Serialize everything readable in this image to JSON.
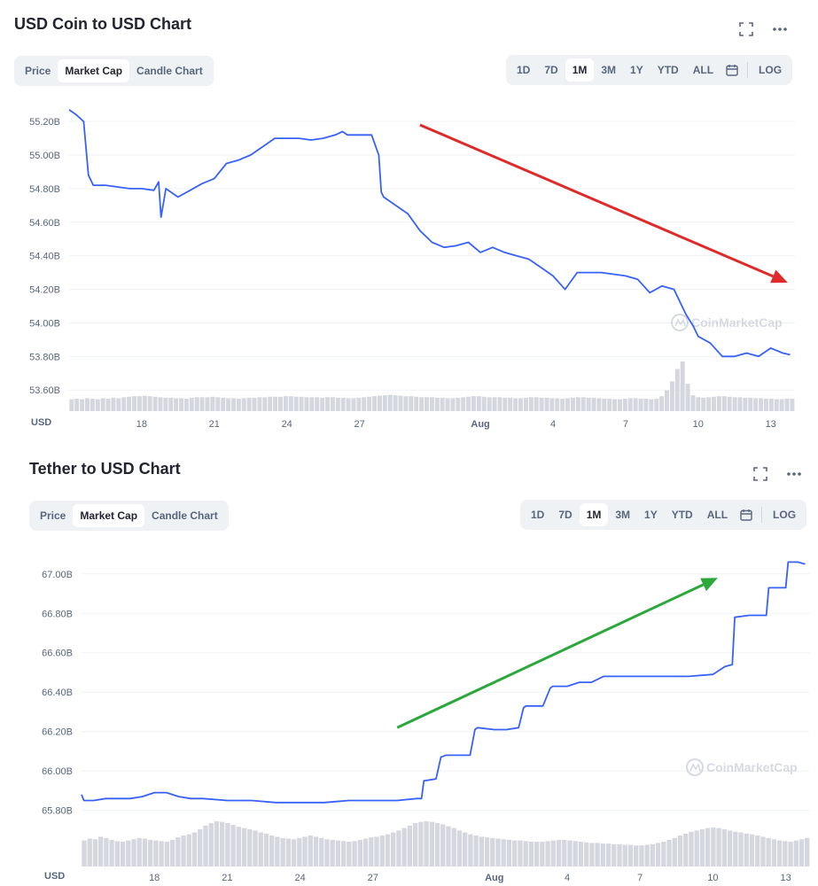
{
  "charts": [
    {
      "title": "USD Coin to USD Chart",
      "tabs": [
        "Price",
        "Market Cap",
        "Candle Chart"
      ],
      "active_tab": "Market Cap",
      "ranges": [
        "1D",
        "7D",
        "1M",
        "3M",
        "1Y",
        "YTD",
        "ALL"
      ],
      "active_range": "1M",
      "log_label": "LOG",
      "currency_label": "USD",
      "watermark": "CoinMarketCap"
    },
    {
      "title": "Tether to USD Chart",
      "tabs": [
        "Price",
        "Market Cap",
        "Candle Chart"
      ],
      "active_tab": "Market Cap",
      "ranges": [
        "1D",
        "7D",
        "1M",
        "3M",
        "1Y",
        "YTD",
        "ALL"
      ],
      "active_range": "1M",
      "log_label": "LOG",
      "currency_label": "USD",
      "watermark": "CoinMarketCap"
    }
  ],
  "chart_data": [
    {
      "type": "line",
      "title": "USD Coin to USD Chart",
      "ylabel": "",
      "xlabel": "",
      "ylim": [
        53.58,
        55.28
      ],
      "y_ticks": [
        "53.60B",
        "53.80B",
        "54.00B",
        "54.20B",
        "54.40B",
        "54.60B",
        "54.80B",
        "55.00B",
        "55.20B"
      ],
      "y_tick_values": [
        53.6,
        53.8,
        54.0,
        54.2,
        54.4,
        54.6,
        54.8,
        55.0,
        55.2
      ],
      "x_ticks": [
        "18",
        "21",
        "24",
        "27",
        "Aug",
        "4",
        "7",
        "10",
        "13"
      ],
      "x_tick_values": [
        18,
        21,
        24,
        27,
        32,
        35,
        38,
        41,
        44
      ],
      "xlim": [
        15,
        45
      ],
      "series": [
        {
          "color": "#3861fb",
          "x": [
            15,
            15.3,
            15.6,
            15.8,
            16,
            16.5,
            17,
            17.5,
            18,
            18.5,
            18.7,
            18.8,
            19,
            19.5,
            20,
            20.5,
            21,
            21.5,
            22,
            22.5,
            23,
            23.5,
            24,
            24.5,
            25,
            25.5,
            26,
            26.3,
            26.5,
            27,
            27.5,
            27.8,
            27.9,
            28,
            28.5,
            29,
            29.5,
            30,
            30.5,
            31,
            31.5,
            32,
            32.5,
            33,
            33.5,
            34,
            34.5,
            35,
            35.5,
            36,
            36.5,
            37,
            37.5,
            38,
            38.5,
            39,
            39.5,
            40,
            40.5,
            40.8,
            41,
            41.5,
            42,
            42.5,
            43,
            43.5,
            44,
            44.5,
            44.8
          ],
          "y": [
            55.27,
            55.24,
            55.2,
            54.88,
            54.82,
            54.82,
            54.81,
            54.8,
            54.8,
            54.79,
            54.84,
            54.63,
            54.8,
            54.75,
            54.79,
            54.83,
            54.86,
            54.95,
            54.97,
            55.0,
            55.05,
            55.1,
            55.1,
            55.1,
            55.09,
            55.1,
            55.12,
            55.14,
            55.12,
            55.12,
            55.12,
            55.0,
            54.78,
            54.75,
            54.7,
            54.65,
            54.55,
            54.48,
            54.45,
            54.46,
            54.48,
            54.42,
            54.45,
            54.42,
            54.4,
            54.38,
            54.33,
            54.28,
            54.2,
            54.3,
            54.3,
            54.3,
            54.29,
            54.28,
            54.26,
            54.18,
            54.22,
            54.2,
            54.05,
            53.98,
            53.92,
            53.88,
            53.8,
            53.8,
            53.82,
            53.8,
            53.85,
            53.82,
            53.81
          ]
        }
      ],
      "volume": [
        0.24,
        0.25,
        0.24,
        0.26,
        0.25,
        0.24,
        0.26,
        0.25,
        0.27,
        0.26,
        0.28,
        0.29,
        0.3,
        0.3,
        0.31,
        0.3,
        0.29,
        0.28,
        0.27,
        0.27,
        0.26,
        0.26,
        0.25,
        0.27,
        0.28,
        0.28,
        0.28,
        0.29,
        0.28,
        0.27,
        0.26,
        0.26,
        0.25,
        0.26,
        0.27,
        0.27,
        0.28,
        0.28,
        0.29,
        0.29,
        0.29,
        0.3,
        0.3,
        0.29,
        0.29,
        0.28,
        0.28,
        0.28,
        0.27,
        0.28,
        0.28,
        0.27,
        0.27,
        0.26,
        0.26,
        0.27,
        0.28,
        0.29,
        0.3,
        0.31,
        0.32,
        0.33,
        0.32,
        0.31,
        0.3,
        0.3,
        0.29,
        0.28,
        0.28,
        0.28,
        0.27,
        0.27,
        0.26,
        0.26,
        0.27,
        0.28,
        0.29,
        0.3,
        0.3,
        0.29,
        0.28,
        0.28,
        0.28,
        0.27,
        0.27,
        0.26,
        0.26,
        0.27,
        0.28,
        0.28,
        0.27,
        0.27,
        0.26,
        0.26,
        0.25,
        0.26,
        0.27,
        0.28,
        0.28,
        0.27,
        0.27,
        0.26,
        0.25,
        0.25,
        0.24,
        0.24,
        0.25,
        0.26,
        0.26,
        0.25,
        0.25,
        0.24,
        0.25,
        0.3,
        0.42,
        0.6,
        0.85,
        1.0,
        0.55,
        0.32,
        0.28,
        0.27,
        0.28,
        0.29,
        0.3,
        0.3,
        0.29,
        0.28,
        0.28,
        0.27,
        0.27,
        0.26,
        0.26,
        0.25,
        0.25,
        0.24,
        0.24,
        0.25,
        0.25
      ]
    },
    {
      "type": "line",
      "title": "Tether to USD Chart",
      "ylabel": "",
      "xlabel": "",
      "ylim": [
        65.74,
        67.08
      ],
      "y_ticks": [
        "65.80B",
        "66.00B",
        "66.20B",
        "66.40B",
        "66.60B",
        "66.80B",
        "67.00B"
      ],
      "y_tick_values": [
        65.8,
        66.0,
        66.2,
        66.4,
        66.6,
        66.8,
        67.0
      ],
      "x_ticks": [
        "18",
        "21",
        "24",
        "27",
        "Aug",
        "4",
        "7",
        "10",
        "13"
      ],
      "x_tick_values": [
        18,
        21,
        24,
        27,
        32,
        35,
        38,
        41,
        44
      ],
      "xlim": [
        15,
        45
      ],
      "series": [
        {
          "color": "#3861fb",
          "x": [
            15,
            15.1,
            15.5,
            16,
            17,
            17.5,
            18,
            18.5,
            19,
            19.5,
            20,
            21,
            22,
            23,
            24,
            25,
            26,
            27,
            28,
            28.8,
            29.0,
            29.1,
            29.6,
            29.8,
            30.0,
            30.5,
            31.0,
            31.2,
            31.3,
            32.0,
            32.5,
            33.0,
            33.2,
            33.3,
            34.0,
            34.3,
            34.4,
            35.0,
            35.5,
            36.0,
            36.5,
            37,
            38,
            39,
            40,
            41,
            41.5,
            41.8,
            41.9,
            42.5,
            43.2,
            43.3,
            43.8,
            44.0,
            44.1,
            44.5,
            44.8
          ],
          "y": [
            65.88,
            65.85,
            65.85,
            65.86,
            65.86,
            65.87,
            65.89,
            65.89,
            65.87,
            65.86,
            65.86,
            65.85,
            65.85,
            65.84,
            65.84,
            65.84,
            65.85,
            65.85,
            65.85,
            65.86,
            65.86,
            65.95,
            65.96,
            66.07,
            66.08,
            66.08,
            66.08,
            66.21,
            66.22,
            66.21,
            66.21,
            66.22,
            66.32,
            66.33,
            66.33,
            66.42,
            66.43,
            66.43,
            66.45,
            66.45,
            66.48,
            66.48,
            66.48,
            66.48,
            66.48,
            66.49,
            66.53,
            66.54,
            66.78,
            66.79,
            66.79,
            66.93,
            66.93,
            66.93,
            67.06,
            67.06,
            67.05
          ]
        }
      ],
      "volume": [
        0.42,
        0.45,
        0.44,
        0.48,
        0.46,
        0.43,
        0.41,
        0.4,
        0.42,
        0.44,
        0.46,
        0.45,
        0.43,
        0.42,
        0.41,
        0.4,
        0.43,
        0.47,
        0.5,
        0.52,
        0.55,
        0.6,
        0.66,
        0.7,
        0.73,
        0.72,
        0.7,
        0.67,
        0.64,
        0.62,
        0.6,
        0.58,
        0.55,
        0.53,
        0.5,
        0.48,
        0.46,
        0.45,
        0.44,
        0.46,
        0.48,
        0.5,
        0.48,
        0.46,
        0.44,
        0.43,
        0.42,
        0.41,
        0.4,
        0.41,
        0.43,
        0.45,
        0.47,
        0.48,
        0.5,
        0.52,
        0.55,
        0.58,
        0.62,
        0.66,
        0.7,
        0.72,
        0.73,
        0.72,
        0.7,
        0.68,
        0.65,
        0.62,
        0.58,
        0.55,
        0.52,
        0.5,
        0.48,
        0.47,
        0.46,
        0.45,
        0.44,
        0.43,
        0.42,
        0.42,
        0.41,
        0.4,
        0.4,
        0.4,
        0.41,
        0.42,
        0.43,
        0.43,
        0.42,
        0.41,
        0.4,
        0.39,
        0.38,
        0.38,
        0.37,
        0.37,
        0.36,
        0.36,
        0.35,
        0.35,
        0.34,
        0.34,
        0.35,
        0.36,
        0.38,
        0.4,
        0.43,
        0.46,
        0.5,
        0.53,
        0.56,
        0.58,
        0.6,
        0.62,
        0.63,
        0.62,
        0.6,
        0.58,
        0.56,
        0.55,
        0.53,
        0.52,
        0.5,
        0.48,
        0.46,
        0.44,
        0.42,
        0.41,
        0.4,
        0.42,
        0.44,
        0.46
      ]
    }
  ],
  "annotations": [
    {
      "chart": 0,
      "color": "#e02a2a",
      "from": [
        29.5,
        55.18
      ],
      "to": [
        44.7,
        54.24
      ]
    },
    {
      "chart": 1,
      "color": "#2aa83a",
      "from": [
        28.0,
        66.22
      ],
      "to": [
        41.2,
        66.98
      ]
    }
  ]
}
